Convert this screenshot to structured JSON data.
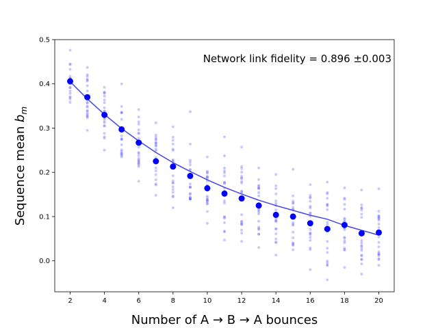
{
  "chart_data": {
    "type": "scatter",
    "xlabel": "Number of A → B → A bounces",
    "ylabel_main": "Sequence mean ",
    "ylabel_var": "b",
    "ylabel_sub": "m",
    "annotation": "Network link fidelity = 0.896 ±0.003",
    "xlim": [
      1.1,
      20.9
    ],
    "ylim": [
      -0.07,
      0.5
    ],
    "xticks": [
      2,
      4,
      6,
      8,
      10,
      12,
      14,
      16,
      18,
      20
    ],
    "yticks": [
      0.0,
      0.1,
      0.2,
      0.3,
      0.4,
      0.5
    ],
    "grid": false,
    "colors": {
      "points": "#0000ff",
      "fit": "#4444ee",
      "samples": "#6666ff"
    },
    "series": [
      {
        "role": "means",
        "x": [
          2,
          3,
          4,
          5,
          6,
          7,
          8,
          9,
          10,
          11,
          12,
          13,
          14,
          15,
          16,
          17,
          18,
          19,
          20
        ],
        "y": [
          0.406,
          0.37,
          0.33,
          0.297,
          0.267,
          0.225,
          0.213,
          0.192,
          0.164,
          0.152,
          0.141,
          0.125,
          0.104,
          0.1,
          0.085,
          0.072,
          0.081,
          0.062,
          0.064
        ]
      },
      {
        "role": "fit",
        "model": "exponential",
        "x": [
          2,
          3,
          4,
          5,
          6,
          7,
          8,
          9,
          10,
          11,
          12,
          13,
          14,
          15,
          16,
          17,
          18,
          19,
          20
        ],
        "y": [
          0.405,
          0.366,
          0.331,
          0.299,
          0.271,
          0.245,
          0.222,
          0.202,
          0.183,
          0.166,
          0.151,
          0.137,
          0.125,
          0.114,
          0.103,
          0.094,
          0.08,
          0.069,
          0.058
        ]
      },
      {
        "role": "individual sequences",
        "x": [
          2,
          3,
          4,
          5,
          6,
          7,
          8,
          9,
          10,
          11,
          12,
          13,
          14,
          15,
          16,
          17,
          18,
          19,
          20
        ],
        "ymin": [
          0.358,
          0.295,
          0.25,
          0.235,
          0.18,
          0.148,
          0.12,
          0.14,
          0.085,
          0.047,
          0.044,
          0.03,
          0.013,
          0.025,
          -0.02,
          -0.043,
          -0.015,
          -0.03,
          -0.01
        ],
        "ymax": [
          0.476,
          0.437,
          0.392,
          0.4,
          0.342,
          0.312,
          0.303,
          0.337,
          0.235,
          0.28,
          0.257,
          0.21,
          0.195,
          0.207,
          0.172,
          0.178,
          0.165,
          0.16,
          0.163
        ]
      }
    ]
  }
}
